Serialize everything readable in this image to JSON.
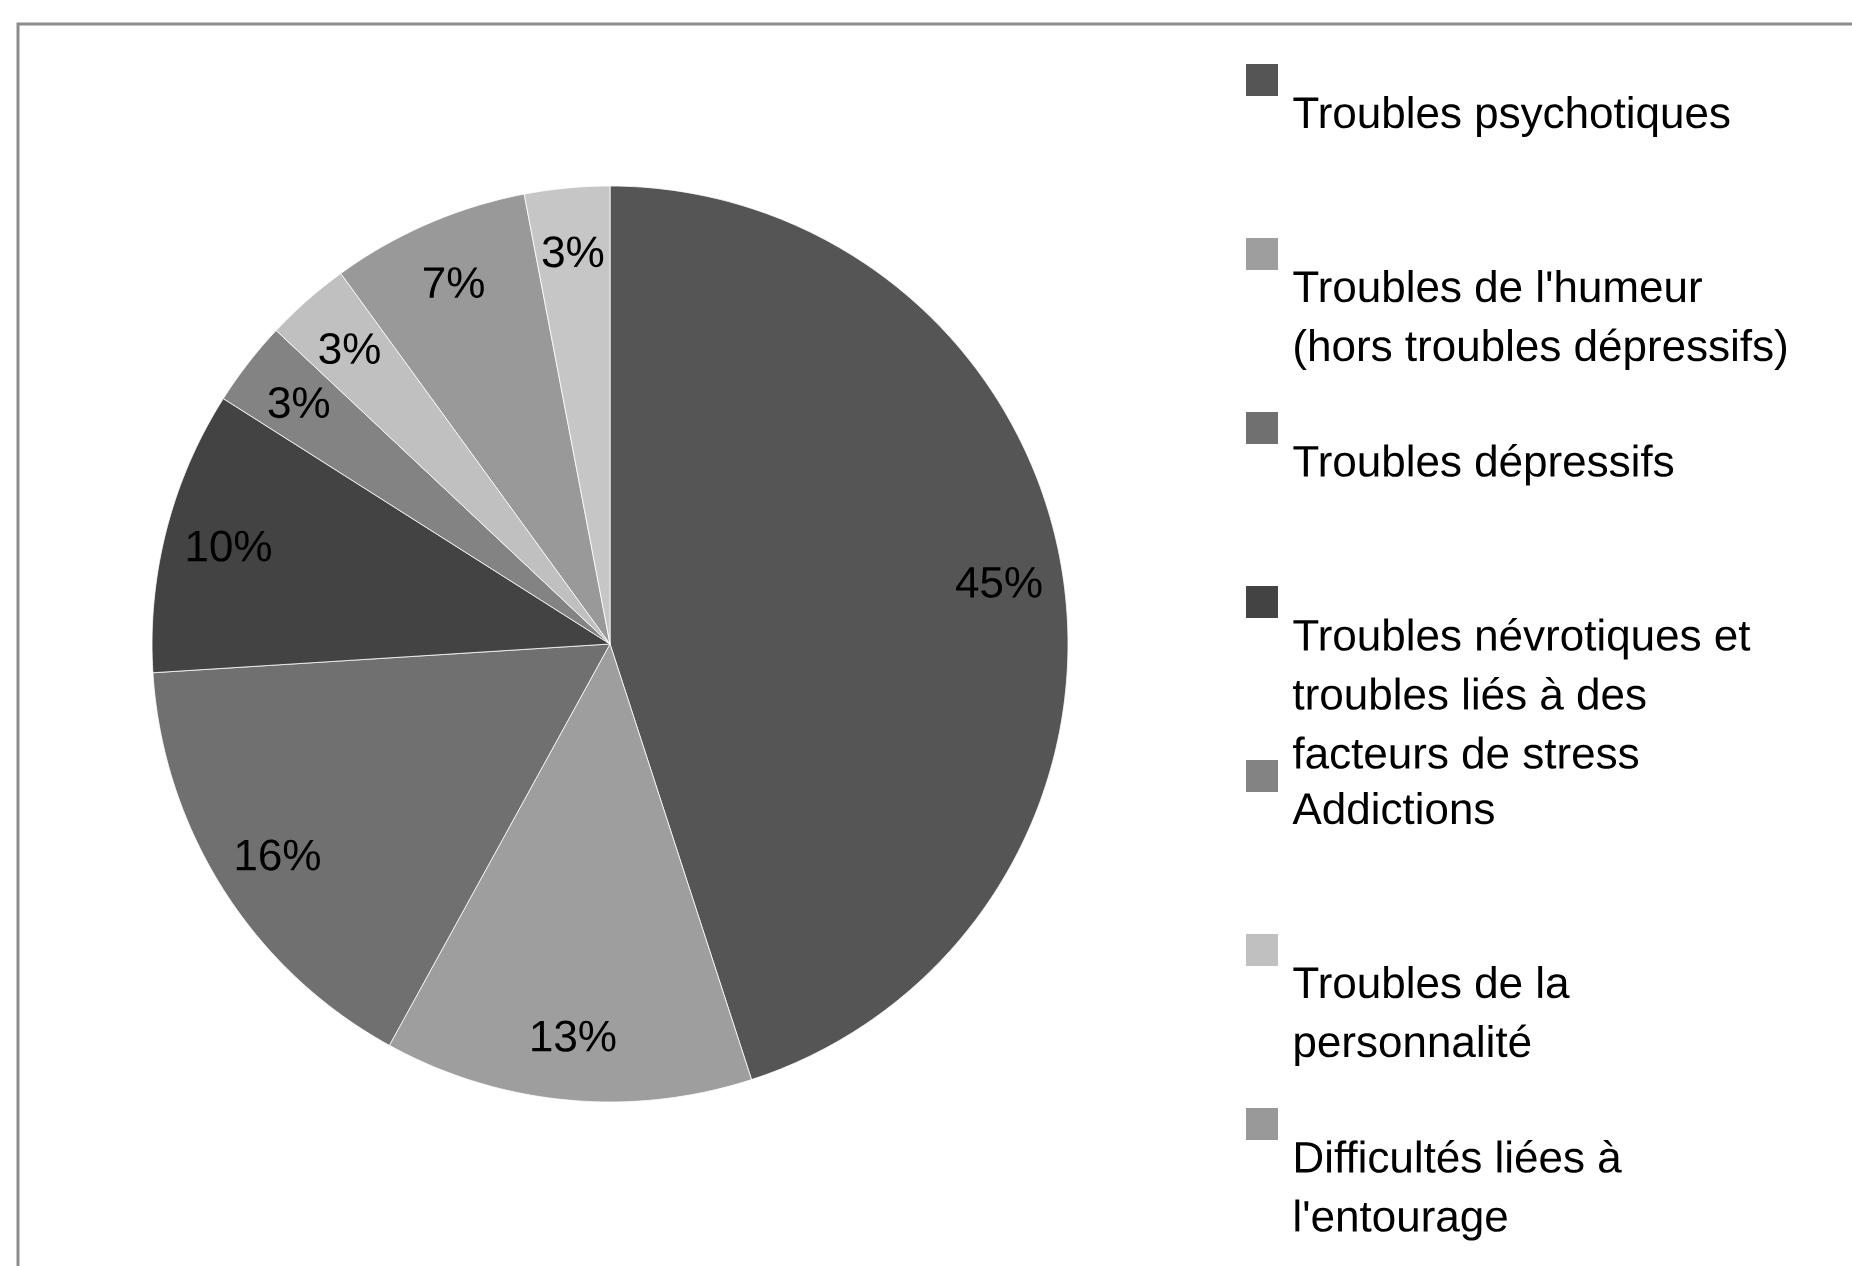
{
  "chart_data": {
    "type": "pie",
    "categories": [
      "Troubles psychotiques",
      "Troubles de l'humeur (hors troubles dépressifs)",
      "Troubles dépressifs",
      "Troubles névrotiques et troubles liés à des facteurs de stress",
      "Addictions",
      "Troubles de la personnalité",
      "Difficultés liées à l'entourage",
      null
    ],
    "values": [
      45,
      13,
      16,
      10,
      3,
      3,
      7,
      3
    ],
    "colors": [
      "#555555",
      "#9e9e9e",
      "#707070",
      "#434343",
      "#838383",
      "#c0c0c0",
      "#999999",
      "#c6c6c6"
    ],
    "value_labels": [
      "45%",
      "13%",
      "16%",
      "10%",
      "3%",
      "3%",
      "7%",
      "3%"
    ],
    "legend": "right"
  }
}
